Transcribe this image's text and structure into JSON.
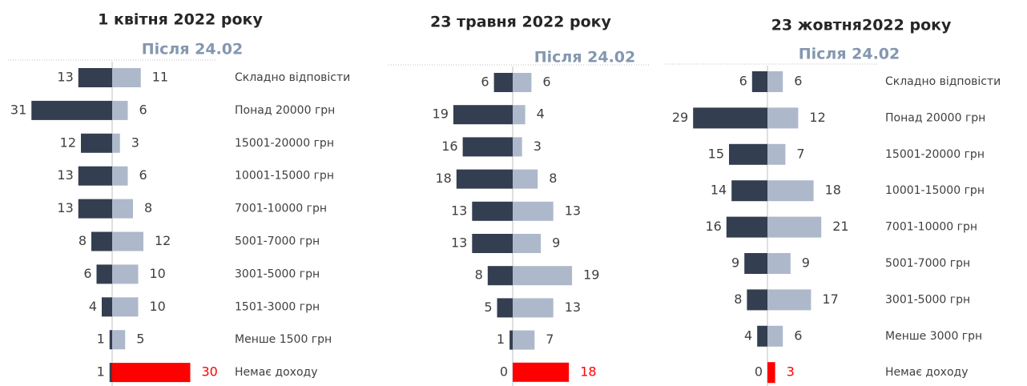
{
  "chart_data": [
    {
      "type": "butterfly",
      "title": "1 квітня 2022 року",
      "subtitle": "Після 24.02",
      "categories": [
        "Складно відповісти",
        "Понад 20000 грн",
        "15001-20000 грн",
        "10001-15000 грн",
        "7001-10000 грн",
        "5001-7000 грн",
        "3001-5000 грн",
        "1501-3000 грн",
        "Менше 1500 грн",
        "Немає доходу"
      ],
      "series": [
        {
          "color": "#333f50",
          "values": [
            13,
            31,
            12,
            13,
            13,
            8,
            6,
            4,
            1,
            1
          ]
        },
        {
          "color": "#adb9ca",
          "values": [
            11,
            6,
            3,
            6,
            8,
            12,
            10,
            10,
            5,
            30
          ],
          "colors": [
            "#adb9ca",
            "#adb9ca",
            "#adb9ca",
            "#adb9ca",
            "#adb9ca",
            "#adb9ca",
            "#adb9ca",
            "#adb9ca",
            "#adb9ca",
            "#ff0000"
          ]
        }
      ]
    },
    {
      "type": "butterfly",
      "title": "23 травня 2022 року",
      "subtitle": "Після 24.02",
      "categories": [
        null,
        null,
        null,
        null,
        null,
        null,
        null,
        null,
        null,
        null
      ],
      "series": [
        {
          "color": "#333f50",
          "values": [
            6,
            19,
            16,
            18,
            13,
            13,
            8,
            5,
            1,
            0
          ]
        },
        {
          "color": "#adb9ca",
          "values": [
            6,
            4,
            3,
            8,
            13,
            9,
            19,
            13,
            7,
            18
          ],
          "colors": [
            "#adb9ca",
            "#adb9ca",
            "#adb9ca",
            "#adb9ca",
            "#adb9ca",
            "#adb9ca",
            "#adb9ca",
            "#adb9ca",
            "#adb9ca",
            "#ff0000"
          ]
        }
      ]
    },
    {
      "type": "butterfly",
      "title": "23 жовтня2022 року",
      "subtitle": "Після 24.02",
      "categories": [
        "Складно відповісти",
        "Понад 20000 грн",
        "15001-20000 грн",
        "10001-15000 грн",
        "7001-10000 грн",
        "5001-7000 грн",
        "3001-5000 грн",
        "Менше 3000 грн",
        "Немає доходу"
      ],
      "series": [
        {
          "color": "#333f50",
          "values": [
            6,
            29,
            15,
            14,
            16,
            9,
            8,
            4,
            0
          ]
        },
        {
          "color": "#adb9ca",
          "values": [
            6,
            12,
            7,
            18,
            21,
            9,
            17,
            6,
            3
          ],
          "colors": [
            "#adb9ca",
            "#adb9ca",
            "#adb9ca",
            "#adb9ca",
            "#adb9ca",
            "#adb9ca",
            "#adb9ca",
            "#adb9ca",
            "#ff0000"
          ]
        }
      ]
    }
  ]
}
